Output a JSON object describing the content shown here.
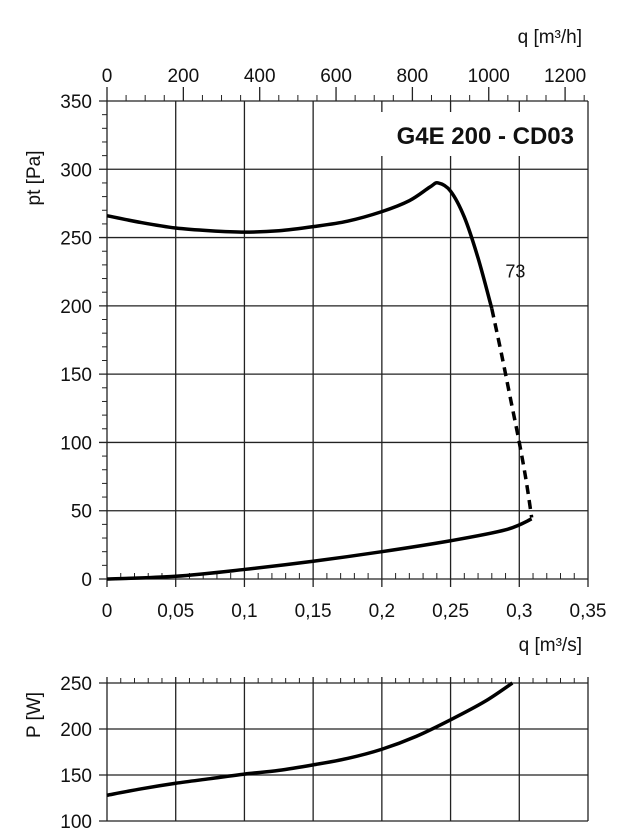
{
  "chart_data": [
    {
      "type": "line",
      "title": "G4E 200 - CD03",
      "xlabel": "q  [m³/s]",
      "ylabel": "pt [Pa]",
      "xlim": [
        0,
        0.35
      ],
      "ylim": [
        0,
        350
      ],
      "x_ticks": [
        "0",
        "0,05",
        "0,1",
        "0,15",
        "0,2",
        "0,25",
        "0,3",
        "0,35"
      ],
      "y_ticks": [
        "0",
        "50",
        "100",
        "150",
        "200",
        "250",
        "300",
        "350"
      ],
      "secondary_x": {
        "label": "q  [m³/h]",
        "ticks": [
          "0",
          "200",
          "400",
          "600",
          "800",
          "1000",
          "1200"
        ],
        "lim": [
          0,
          1260
        ]
      },
      "grid": true,
      "annotations": [
        {
          "text": "73",
          "x": 0.287,
          "y": 225
        }
      ],
      "series": [
        {
          "name": "73",
          "style": "solid",
          "x": [
            0,
            0.025,
            0.05,
            0.075,
            0.1,
            0.125,
            0.15,
            0.175,
            0.2,
            0.22,
            0.235,
            0.241,
            0.25,
            0.26,
            0.27,
            0.28
          ],
          "y": [
            266,
            261,
            257,
            255,
            254,
            255,
            258,
            262,
            269,
            277,
            287,
            290,
            284,
            265,
            235,
            198
          ]
        },
        {
          "name": "",
          "style": "dashed",
          "x": [
            0.28,
            0.287,
            0.294,
            0.3,
            0.305,
            0.309
          ],
          "y": [
            198,
            165,
            130,
            100,
            72,
            45
          ]
        },
        {
          "name": "",
          "style": "solid",
          "x": [
            0,
            0.05,
            0.1,
            0.15,
            0.2,
            0.25,
            0.29,
            0.309
          ],
          "y": [
            0,
            2,
            7,
            13,
            20,
            28,
            36,
            44
          ]
        }
      ]
    },
    {
      "type": "line",
      "xlabel": "",
      "ylabel": "P  [W]",
      "xlim": [
        0,
        0.35
      ],
      "ylim": [
        100,
        250
      ],
      "y_ticks": [
        "100",
        "150",
        "200",
        "250"
      ],
      "grid": true,
      "series": [
        {
          "name": "",
          "style": "solid",
          "x": [
            0,
            0.025,
            0.05,
            0.075,
            0.1,
            0.125,
            0.15,
            0.175,
            0.2,
            0.225,
            0.25,
            0.275,
            0.295
          ],
          "y": [
            128,
            135,
            141,
            146,
            151,
            155,
            161,
            168,
            178,
            192,
            210,
            230,
            250
          ]
        }
      ]
    }
  ]
}
